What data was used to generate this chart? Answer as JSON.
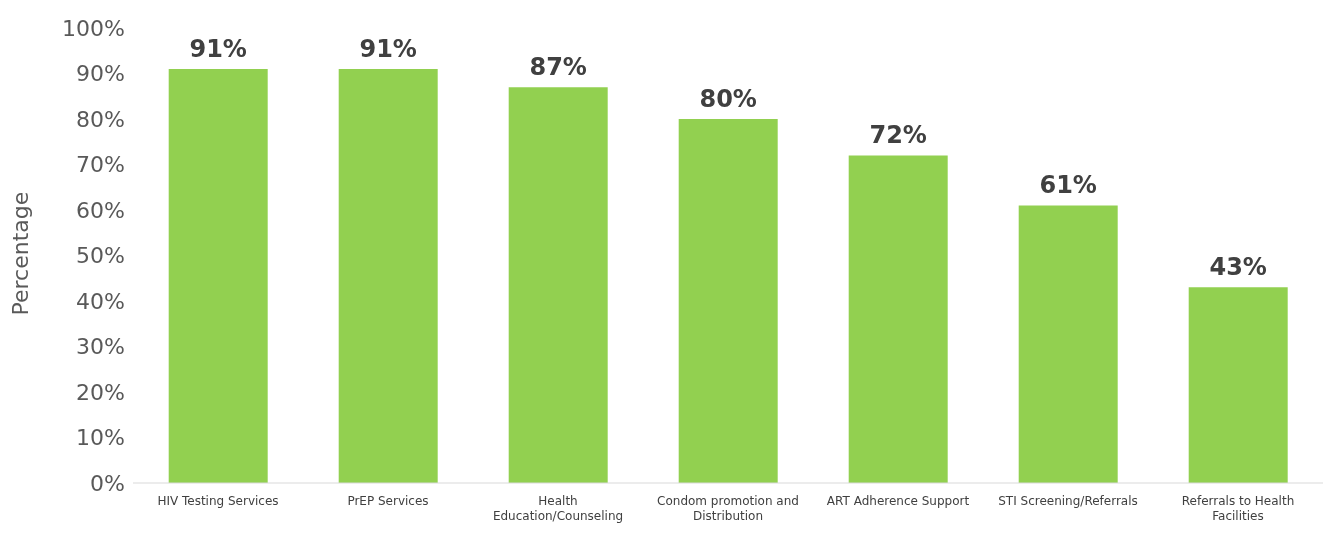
{
  "chart_data": {
    "type": "bar",
    "ylabel": "Percentage",
    "categories": [
      "HIV Testing Services",
      "PrEP Services",
      "Health Education/Counseling",
      "Condom promotion and Distribution",
      "ART Adherence Support",
      "STI Screening/Referrals",
      "Referrals to Health Facilities"
    ],
    "values": [
      91,
      91,
      87,
      80,
      72,
      61,
      43
    ],
    "value_labels": [
      "91%",
      "91%",
      "87%",
      "80%",
      "72%",
      "61%",
      "43%"
    ],
    "color": "#92d050",
    "ylim": [
      0,
      100
    ],
    "yticks": [
      {
        "value": 0,
        "label": "0%"
      },
      {
        "value": 10,
        "label": "10%"
      },
      {
        "value": 20,
        "label": "20%"
      },
      {
        "value": 30,
        "label": "30%"
      },
      {
        "value": 40,
        "label": "40%"
      },
      {
        "value": 50,
        "label": "50%"
      },
      {
        "value": 60,
        "label": "60%"
      },
      {
        "value": 70,
        "label": "70%"
      },
      {
        "value": 80,
        "label": "80%"
      },
      {
        "value": 90,
        "label": "90%"
      },
      {
        "value": 100,
        "label": "100%"
      }
    ],
    "grid": false,
    "legend": false
  }
}
